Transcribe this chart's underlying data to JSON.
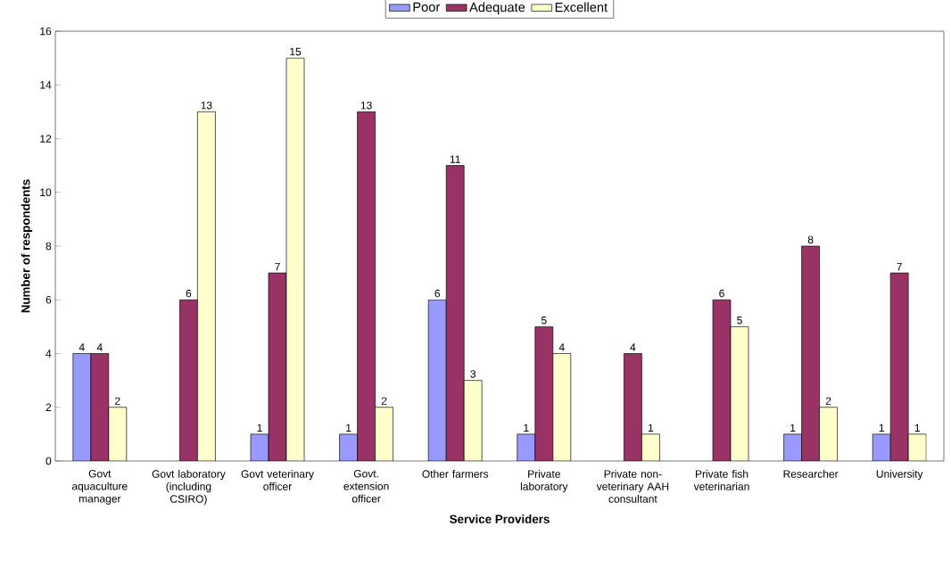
{
  "chart_data": {
    "type": "bar",
    "xlabel": "Service Providers",
    "ylabel": "Number of respondents",
    "categories": [
      "Govt aquaculture manager",
      "Govt laboratory (including CSIRO)",
      "Govt veterinary officer",
      "Govt. extension officer",
      "Other farmers",
      "Private laboratory",
      "Private non-veterinary AAH consultant",
      "Private fish veterinarian",
      "Researcher",
      "University"
    ],
    "series": [
      {
        "name": "Poor",
        "color": "#9999ff",
        "values": [
          4,
          null,
          1,
          1,
          6,
          1,
          null,
          null,
          1,
          1
        ]
      },
      {
        "name": "Adequate",
        "color": "#993366",
        "values": [
          4,
          6,
          7,
          13,
          11,
          5,
          4,
          6,
          8,
          7
        ]
      },
      {
        "name": "Excellent",
        "color": "#ffffcc",
        "values": [
          2,
          13,
          15,
          2,
          3,
          4,
          1,
          5,
          2,
          1
        ]
      }
    ],
    "ylim": [
      0,
      16
    ],
    "yticks": [
      0,
      2,
      4,
      6,
      8,
      10,
      12,
      14,
      16
    ],
    "legend": "top",
    "data_labels": true
  }
}
